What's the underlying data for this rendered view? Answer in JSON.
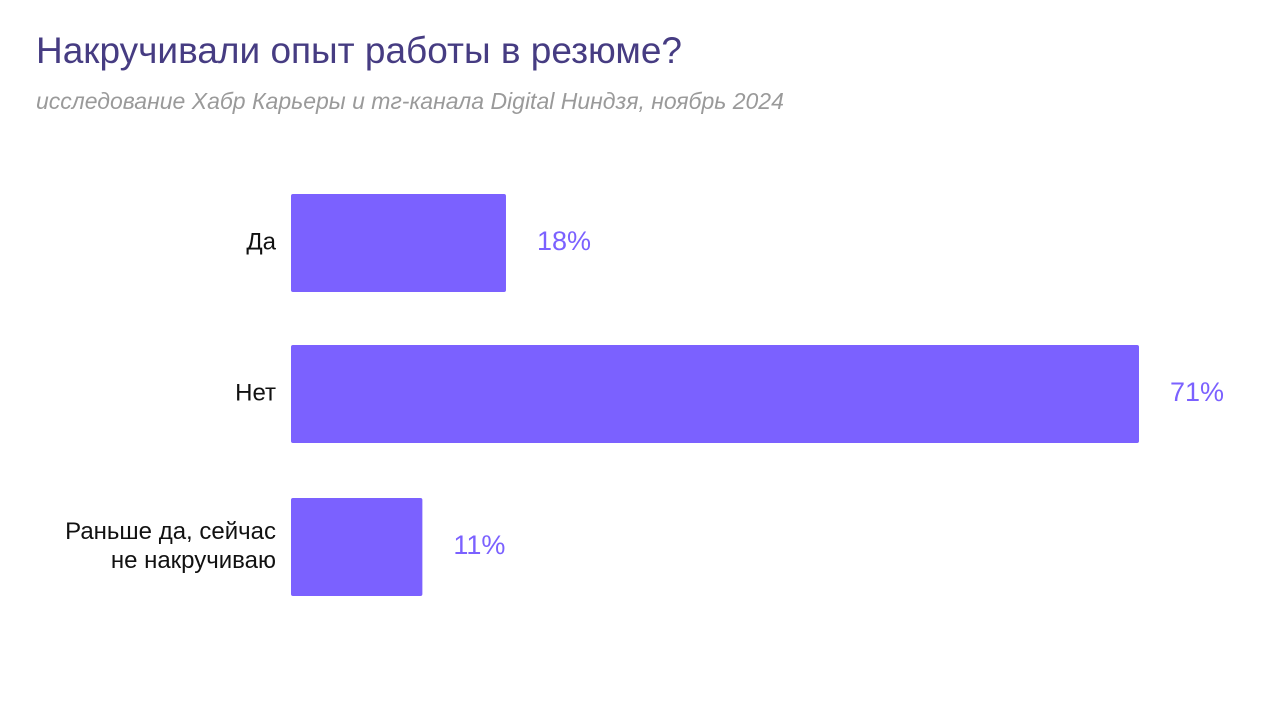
{
  "header": {
    "title": "Накручивали опыт работы в резюме?",
    "subtitle": "исследование Хабр Карьеры и тг-канала Digital Ниндзя, ноябрь 2024"
  },
  "colors": {
    "bar": "#7b61ff",
    "value_label": "#7b61ff",
    "title": "#463c82",
    "subtitle": "#9a9a9a"
  },
  "chart_data": {
    "type": "bar",
    "orientation": "horizontal",
    "title": "Накручивали опыт работы в резюме?",
    "subtitle": "исследование Хабр Карьеры и тг-канала Digital Ниндзя, ноябрь 2024",
    "categories": [
      [
        "Да"
      ],
      [
        "Нет"
      ],
      [
        "Раньше да, сейчас",
        "не накручиваю"
      ]
    ],
    "values": [
      18,
      71,
      11
    ],
    "value_labels": [
      "18%",
      "71%",
      "11%"
    ],
    "unit": "%",
    "xlim": [
      0,
      100
    ],
    "grid": false,
    "legend": "none"
  }
}
